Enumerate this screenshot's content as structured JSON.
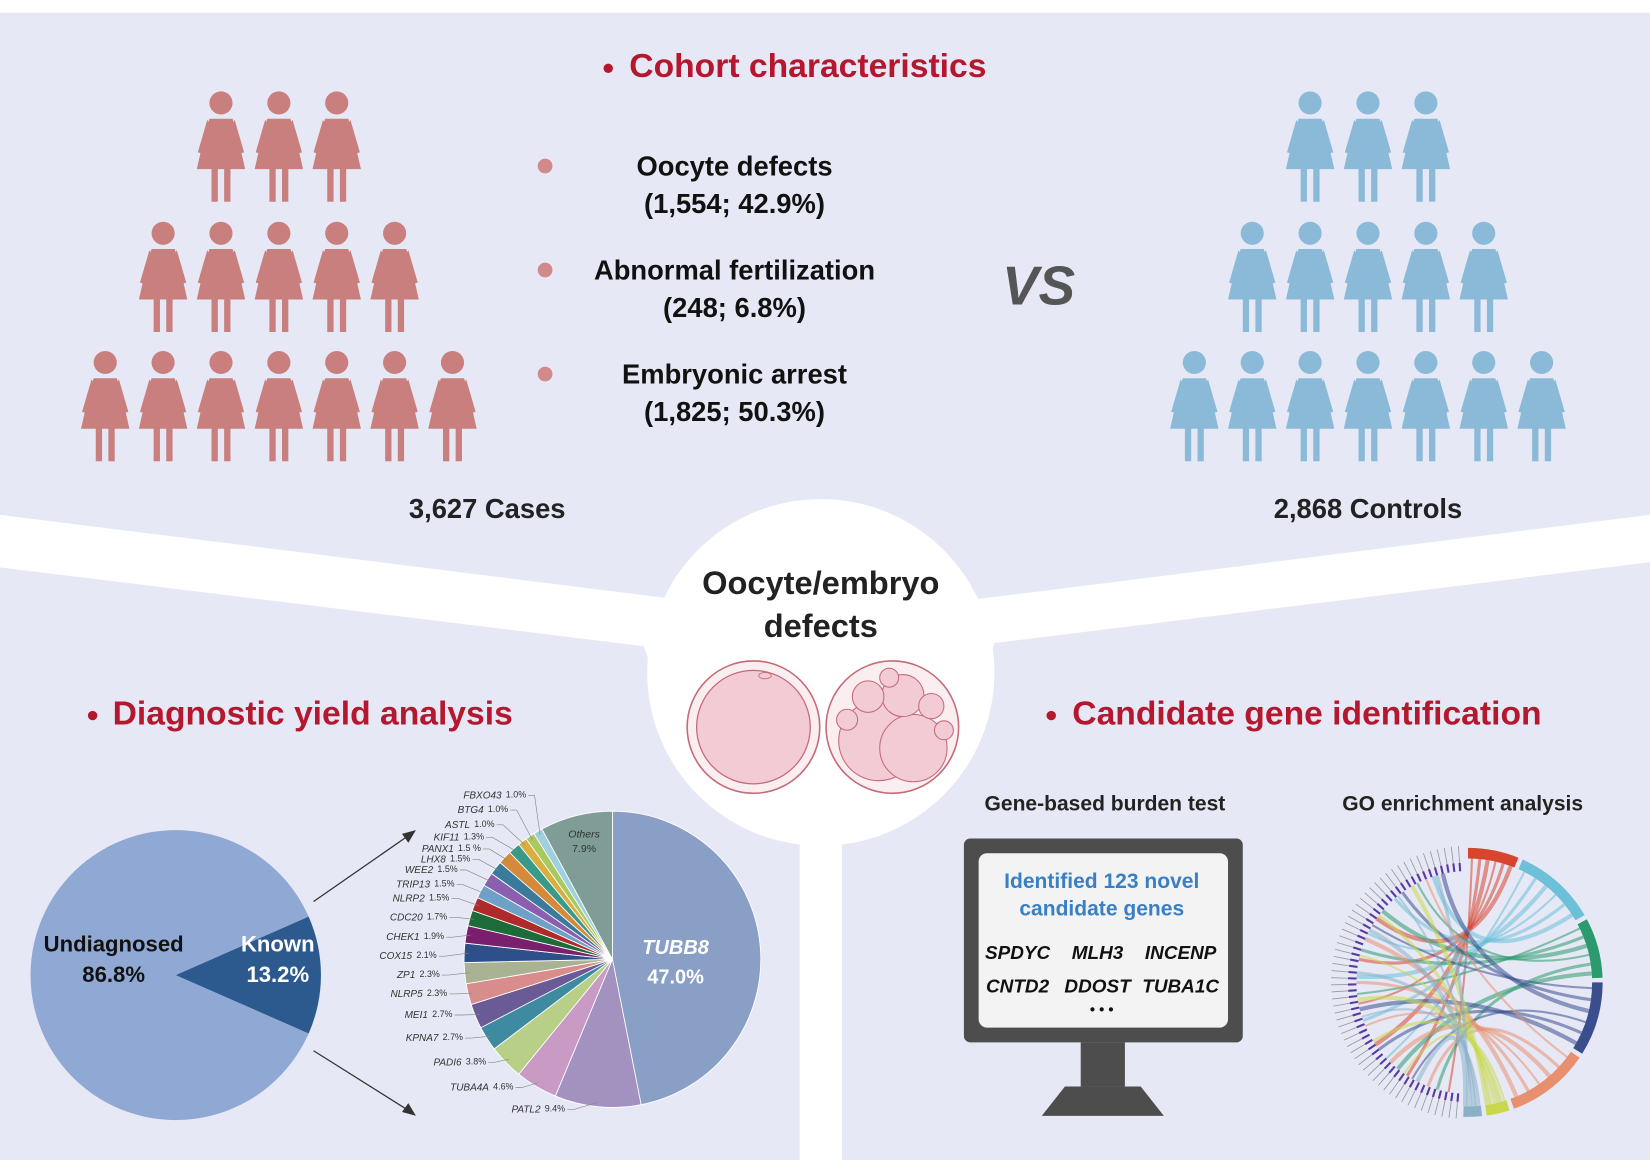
{
  "cohort": {
    "title": "Cohort characteristics",
    "groups": [
      {
        "label": "Oocyte defects",
        "stats": "(1,554; 42.9%)"
      },
      {
        "label": "Abnormal fertilization",
        "stats": "(248; 6.8%)"
      },
      {
        "label": "Embryonic arrest",
        "stats": "(1,825; 50.3%)"
      }
    ],
    "vs": "VS",
    "cases": "3,627 Cases",
    "controls": "2,868 Controls"
  },
  "center": {
    "title_lines": [
      "Oocyte/embryo",
      "defects"
    ]
  },
  "diagnostic": {
    "title": "Diagnostic yield analysis"
  },
  "candidate": {
    "title": "Candidate gene identification",
    "burden_title": "Gene-based burden test",
    "go_title": "GO enrichment analysis",
    "message_lines": [
      "Identified 123 novel",
      "candidate genes"
    ],
    "genes": [
      [
        "SPDYC",
        "MLH3",
        "INCENP"
      ],
      [
        "CNTD2",
        "DDOST",
        "TUBA1C"
      ]
    ],
    "ellipsis": "• • •"
  },
  "chart_data": [
    {
      "type": "pie",
      "categories": [
        "Undiagnosed",
        "Known"
      ],
      "values": [
        86.8,
        13.2
      ],
      "value_labels": [
        "86.8%",
        "13.2%"
      ],
      "colors": [
        "#8fa8d4",
        "#2d5a8e"
      ]
    },
    {
      "type": "pie",
      "categories": [
        "TUBB8",
        "PATL2",
        "TUBA4A",
        "PADI6",
        "KPNA7",
        "MEI1",
        "NLRP5",
        "ZP1",
        "COX15",
        "CHEK1",
        "CDC20",
        "NLRP2",
        "TRIP13",
        "WEE2",
        "LHX8",
        "PANX1",
        "KIF11",
        "ASTL",
        "BTG4",
        "FBXO43",
        "Others"
      ],
      "values": [
        47.0,
        9.4,
        4.6,
        3.8,
        2.7,
        2.7,
        2.3,
        2.3,
        2.1,
        1.9,
        1.7,
        1.5,
        1.5,
        1.5,
        1.5,
        1.5,
        1.3,
        1.0,
        1.0,
        1.0,
        7.9
      ],
      "value_labels": [
        "47.0%",
        "9.4%",
        "4.6%",
        "3.8%",
        "2.7%",
        "2.7%",
        "2.3%",
        "2.3%",
        "2.1%",
        "1.9%",
        "1.7%",
        "1.5%",
        "1.5%",
        "1.5%",
        "1.5%",
        "1.5 %",
        "1.3%",
        "1.0%",
        "1.0%",
        "1.0%",
        "7.9%"
      ],
      "colors": [
        "#8a9fc6",
        "#a391bf",
        "#c99bc4",
        "#b7cf86",
        "#3e8aa0",
        "#6a5a96",
        "#d98c8c",
        "#a9b394",
        "#2d4f8a",
        "#7a1f6e",
        "#1e6b3a",
        "#b02a2a",
        "#6fa0c8",
        "#8a5fb0",
        "#3a7a9a",
        "#d48a3a",
        "#3a9a8a",
        "#d8b040",
        "#a8c860",
        "#a0d0e0",
        "#7f9d96"
      ]
    }
  ]
}
